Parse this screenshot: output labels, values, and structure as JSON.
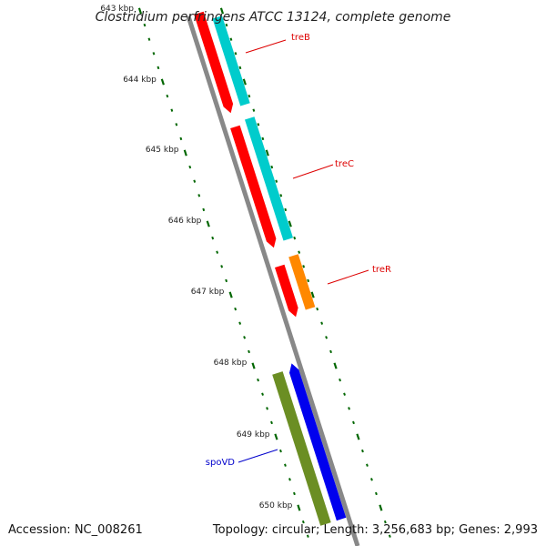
{
  "title": "Clostridium perfringens ATCC 13124, complete genome",
  "ticks": [
    {
      "label": "643 kbp",
      "faded": true
    },
    {
      "label": "644 kbp"
    },
    {
      "label": "645 kbp"
    },
    {
      "label": "646 kbp"
    },
    {
      "label": "647 kbp"
    },
    {
      "label": "648 kbp"
    },
    {
      "label": "649 kbp"
    },
    {
      "label": "650 kbp"
    }
  ],
  "genes": [
    {
      "name": "treB",
      "label_color": "#dd0000"
    },
    {
      "name": "treC",
      "label_color": "#dd0000"
    },
    {
      "name": "treR",
      "label_color": "#dd0000"
    },
    {
      "name": "spoVD",
      "label_color": "#0000cc"
    }
  ],
  "colors": {
    "backbone": "#888888",
    "red": "#ff0000",
    "cyan": "#00cccc",
    "orange": "#ff8800",
    "olive": "#6b8e23",
    "blue": "#0000ee",
    "tick_green": "#006600"
  },
  "footer": {
    "accession": "Accession: NC_008261",
    "summary": "Topology: circular; Length: 3,256,683 bp; Genes: 2,993"
  }
}
